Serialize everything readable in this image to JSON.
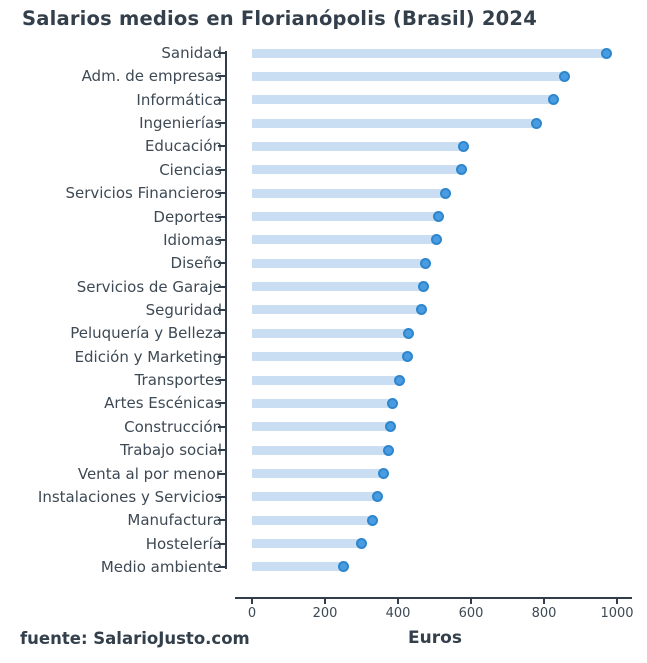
{
  "title": "Salarios medios en Florianópolis (Brasil) 2024",
  "footer": "fuente: SalarioJusto.com",
  "chart_data": {
    "type": "bar",
    "style": "lollipop",
    "orientation": "horizontal",
    "title": "Salarios medios en Florianópolis (Brasil) 2024",
    "xlabel": "Euros",
    "ylabel": "",
    "xlim": [
      0,
      1000
    ],
    "x_ticks": [
      0,
      200,
      400,
      600,
      800,
      1000
    ],
    "grid": false,
    "legend": false,
    "categories": [
      "Sanidad",
      "Adm. de empresas",
      "Informática",
      "Ingenierías",
      "Educación",
      "Ciencias",
      "Servicios Financieros",
      "Deportes",
      "Idiomas",
      "Diseño",
      "Servicios de Garaje",
      "Seguridad",
      "Peluquería y Belleza",
      "Edición y Marketing",
      "Transportes",
      "Artes Escénicas",
      "Construcción",
      "Trabajo social",
      "Venta al por menor",
      "Instalaciones y Servicios",
      "Manufactura",
      "Hostelería",
      "Medio ambiente"
    ],
    "values": [
      970,
      855,
      825,
      780,
      580,
      575,
      530,
      510,
      505,
      475,
      470,
      465,
      430,
      425,
      405,
      385,
      380,
      375,
      360,
      345,
      330,
      300,
      250
    ],
    "colors": {
      "bar": "#c9def2",
      "dot_fill": "#4a9ce2",
      "dot_border": "#2e86cc",
      "axis": "#313d4a",
      "text_dark": "#333f4b",
      "text_label": "#3d4954"
    }
  }
}
